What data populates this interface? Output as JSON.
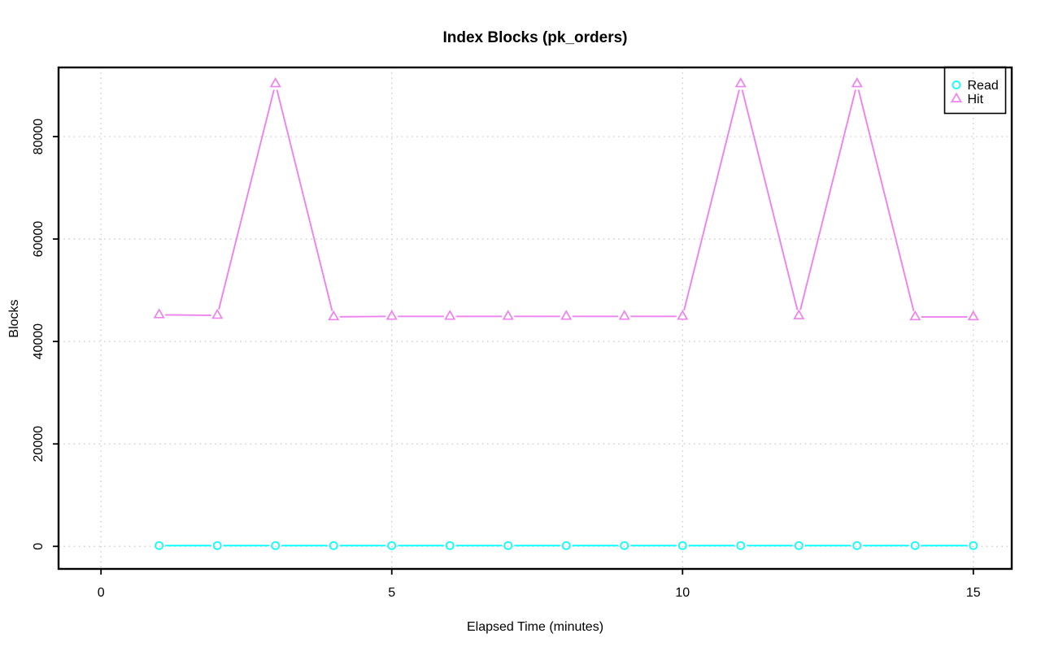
{
  "figure": {
    "background_color": "#FFFFFF",
    "axis_color": "#000000",
    "grid_color": "#C9C9C9"
  },
  "chart_data": {
    "type": "line",
    "title": "Index Blocks (pk_orders)",
    "xlabel": "Elapsed Time (minutes)",
    "ylabel": "Blocks",
    "x": [
      1,
      2,
      3,
      4,
      5,
      6,
      7,
      8,
      9,
      10,
      11,
      12,
      13,
      14,
      15
    ],
    "series": [
      {
        "name": "Read",
        "color": "#00FFFF",
        "marker": "circle",
        "line_style": "solid",
        "values": [
          150,
          150,
          150,
          150,
          150,
          150,
          150,
          150,
          150,
          150,
          150,
          150,
          150,
          150,
          150
        ]
      },
      {
        "name": "Hit",
        "color": "#EE82EE",
        "marker": "triangle",
        "line_style": "solid",
        "values": [
          45200,
          45100,
          90300,
          44800,
          44900,
          44900,
          44900,
          44900,
          44900,
          44900,
          90300,
          45000,
          90300,
          44800,
          44800
        ]
      }
    ],
    "xlim": [
      -0.73,
      15.66
    ],
    "ylim": [
      -4400,
      93500
    ],
    "x_ticks": [
      0,
      5,
      10,
      15
    ],
    "y_ticks": [
      0,
      20000,
      40000,
      60000,
      80000
    ],
    "grid": true,
    "grid_style": "dotted",
    "legend": {
      "position": "top-right",
      "border": true,
      "entries": [
        "Read",
        "Hit"
      ]
    }
  }
}
